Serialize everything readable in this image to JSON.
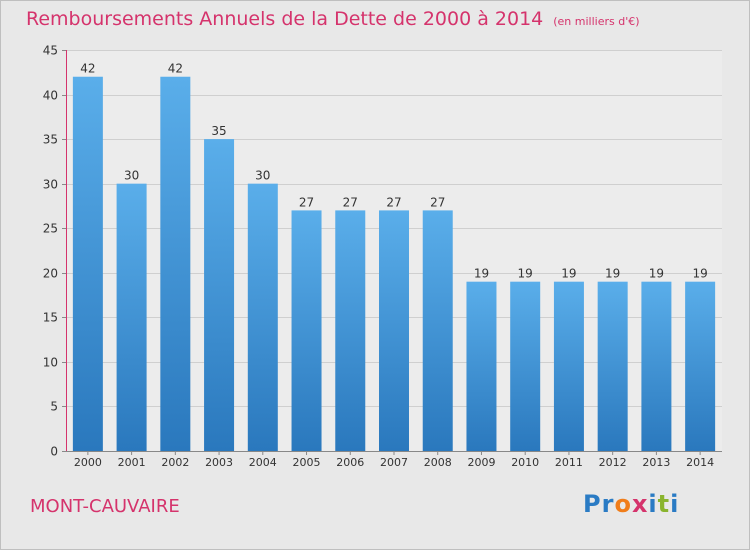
{
  "chart_data": {
    "type": "bar",
    "title": "Remboursements Annuels de la Dette de 2000 à 2014",
    "unit_note": "(en milliers d'€)",
    "categories": [
      "2000",
      "2001",
      "2002",
      "2003",
      "2004",
      "2005",
      "2006",
      "2007",
      "2008",
      "2009",
      "2010",
      "2011",
      "2012",
      "2013",
      "2014"
    ],
    "values": [
      42,
      30,
      42,
      35,
      30,
      27,
      27,
      27,
      27,
      19,
      19,
      19,
      19,
      19,
      19
    ],
    "ylim": [
      0,
      45
    ],
    "yticks": [
      0,
      5,
      10,
      15,
      20,
      25,
      30,
      35,
      40,
      45
    ],
    "grid": true,
    "bar_color_top": "#5aaeea",
    "bar_color_bottom": "#2a78bd"
  },
  "footer": {
    "place_name": "MONT-CAUVAIRE",
    "logo_text": "Proxiti",
    "logo_colors": [
      "#2a7bc4",
      "#2a7bc4",
      "#f07d1a",
      "#d5336c",
      "#2a7bc4",
      "#8ab42e",
      "#2a7bc4"
    ]
  },
  "colors": {
    "title": "#d5336c",
    "background": "#e8e8e8",
    "grid": "#cfcfcf",
    "axis_line": "#d5336c"
  }
}
